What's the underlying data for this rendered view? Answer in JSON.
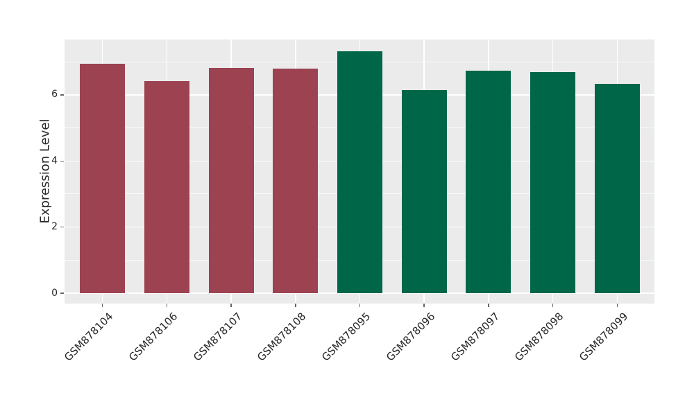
{
  "chart_data": {
    "type": "bar",
    "title": "",
    "xlabel": "",
    "ylabel": "Expression Level",
    "categories": [
      "GSM878104",
      "GSM878106",
      "GSM878107",
      "GSM878108",
      "GSM878095",
      "GSM878096",
      "GSM878097",
      "GSM878098",
      "GSM878099"
    ],
    "values": [
      6.95,
      6.41,
      6.81,
      6.79,
      7.33,
      6.14,
      6.73,
      6.69,
      6.34
    ],
    "bar_colors": [
      "#9C4251",
      "#9C4251",
      "#9C4251",
      "#9C4251",
      "#006648",
      "#006648",
      "#006648",
      "#006648",
      "#006648"
    ],
    "group_colors": {
      "red_group": "#9C4251",
      "green_group": "#006648"
    },
    "yticks": [
      0,
      2,
      4,
      6
    ],
    "yticks_minor": [
      1,
      3,
      5,
      7
    ],
    "ylim": [
      -0.32,
      7.69
    ],
    "x_tick_rotation_deg": 45,
    "legend": "none",
    "grid": "white major+minor horizontal lines, white vertical line at each category center",
    "panel_background": "#EBEBEB",
    "grid_color": "#FFFFFF",
    "text_color": "#262626",
    "tick_color": "#666666"
  }
}
